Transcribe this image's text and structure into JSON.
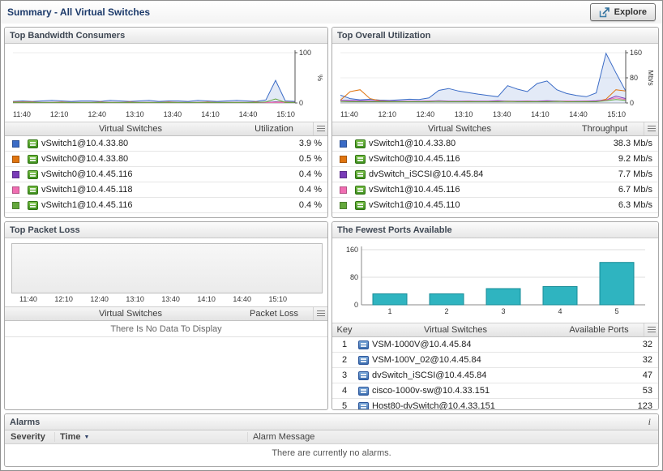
{
  "header": {
    "title": "Summary - All Virtual Switches",
    "explore": "Explore"
  },
  "icons": {
    "info": "i",
    "sort_desc": "▼"
  },
  "time_axis": [
    "11:40",
    "12:10",
    "12:40",
    "13:10",
    "13:40",
    "14:10",
    "14:40",
    "15:10"
  ],
  "panels": {
    "bandwidth": {
      "title": "Top Bandwidth Consumers",
      "columns": {
        "name": "Virtual Switches",
        "value": "Utilization"
      },
      "rows": [
        {
          "color": "#3a6bc6",
          "icon": "green",
          "name": "vSwitch1@10.4.33.80",
          "value": "3.9 %"
        },
        {
          "color": "#e07510",
          "icon": "green",
          "name": "vSwitch0@10.4.33.80",
          "value": "0.5 %"
        },
        {
          "color": "#7a3cb8",
          "icon": "green",
          "name": "vSwitch0@10.4.45.116",
          "value": "0.4 %"
        },
        {
          "color": "#f06eb2",
          "icon": "green",
          "name": "vSwitch1@10.4.45.118",
          "value": "0.4 %"
        },
        {
          "color": "#64a83c",
          "icon": "green",
          "name": "vSwitch1@10.4.45.116",
          "value": "0.4 %"
        }
      ]
    },
    "utilization": {
      "title": "Top Overall Utilization",
      "columns": {
        "name": "Virtual Switches",
        "value": "Throughput"
      },
      "rows": [
        {
          "color": "#3a6bc6",
          "icon": "green",
          "name": "vSwitch1@10.4.33.80",
          "value": "38.3 Mb/s"
        },
        {
          "color": "#e07510",
          "icon": "green",
          "name": "vSwitch0@10.4.45.116",
          "value": "9.2 Mb/s"
        },
        {
          "color": "#7a3cb8",
          "icon": "green",
          "name": "dvSwitch_iSCSI@10.4.45.84",
          "value": "7.7 Mb/s"
        },
        {
          "color": "#f06eb2",
          "icon": "green",
          "name": "vSwitch1@10.4.45.116",
          "value": "6.7 Mb/s"
        },
        {
          "color": "#64a83c",
          "icon": "green",
          "name": "vSwitch1@10.4.45.110",
          "value": "6.3 Mb/s"
        }
      ]
    },
    "packet_loss": {
      "title": "Top Packet Loss",
      "columns": {
        "name": "Virtual Switches",
        "value": "Packet Loss"
      },
      "no_data": "There Is No Data To Display"
    },
    "ports": {
      "title": "The Fewest Ports Available",
      "columns": {
        "key": "Key",
        "name": "Virtual Switches",
        "value": "Available Ports"
      },
      "rows": [
        {
          "key": "1",
          "icon": "blue",
          "name": "VSM-1000V@10.4.45.84",
          "value": "32"
        },
        {
          "key": "2",
          "icon": "blue",
          "name": "VSM-100V_02@10.4.45.84",
          "value": "32"
        },
        {
          "key": "3",
          "icon": "blue",
          "name": "dvSwitch_iSCSI@10.4.45.84",
          "value": "47"
        },
        {
          "key": "4",
          "icon": "blue",
          "name": "cisco-1000v-sw@10.4.33.151",
          "value": "53"
        },
        {
          "key": "5",
          "icon": "blue",
          "name": "Host80-dvSwitch@10.4.33.151",
          "value": "123"
        }
      ]
    },
    "alarms": {
      "title": "Alarms",
      "columns": {
        "severity": "Severity",
        "time": "Time",
        "message": "Alarm Message"
      },
      "no_data": "There are currently no alarms."
    }
  },
  "chart_data": [
    {
      "id": "bandwidth",
      "type": "line",
      "title": "Top Bandwidth Consumers",
      "x_labels": [
        "11:40",
        "12:10",
        "12:40",
        "13:10",
        "13:40",
        "14:10",
        "14:40",
        "15:10"
      ],
      "ylabel": "%",
      "ylim": [
        0,
        100
      ],
      "y_ticks": [
        0,
        100
      ],
      "axis_side": "right",
      "grid": false,
      "series": [
        {
          "name": "vSwitch1@10.4.33.80",
          "color": "#3a6bc6",
          "fill": true,
          "values": [
            3,
            4,
            3,
            4,
            5,
            4,
            3,
            4,
            4,
            3,
            5,
            4,
            3,
            4,
            5,
            3,
            4,
            4,
            3,
            5,
            4,
            3,
            4,
            5,
            4,
            3,
            6,
            45,
            4,
            3
          ]
        },
        {
          "name": "vSwitch0@10.4.33.80",
          "color": "#e07510",
          "values": [
            2,
            2,
            2,
            1,
            1,
            2,
            1,
            1,
            1,
            2,
            1,
            1,
            2,
            1,
            1,
            1,
            2,
            1,
            1,
            1,
            2,
            1,
            1,
            1,
            1,
            2,
            1,
            2,
            2,
            1
          ]
        },
        {
          "name": "vSwitch0@10.4.45.116",
          "color": "#7a3cb8",
          "values": [
            1,
            1,
            1,
            1,
            1,
            1,
            1,
            1,
            1,
            1,
            1,
            1,
            1,
            1,
            1,
            1,
            1,
            1,
            1,
            1,
            1,
            1,
            1,
            1,
            1,
            1,
            1,
            2,
            1,
            1
          ]
        },
        {
          "name": "vSwitch1@10.4.45.118",
          "color": "#f06eb2",
          "values": [
            1,
            1,
            1,
            1,
            1,
            1,
            1,
            1,
            1,
            1,
            1,
            1,
            1,
            1,
            1,
            1,
            1,
            1,
            1,
            1,
            1,
            1,
            1,
            1,
            1,
            1,
            1,
            1,
            1,
            1
          ]
        },
        {
          "name": "vSwitch1@10.4.45.116",
          "color": "#64a83c",
          "values": [
            1,
            1,
            1,
            1,
            1,
            1,
            1,
            1,
            1,
            1,
            1,
            1,
            1,
            1,
            1,
            1,
            1,
            1,
            1,
            1,
            1,
            1,
            1,
            1,
            1,
            1,
            2,
            8,
            1,
            1
          ]
        }
      ]
    },
    {
      "id": "utilization",
      "type": "line",
      "title": "Top Overall Utilization",
      "x_labels": [
        "11:40",
        "12:10",
        "12:40",
        "13:10",
        "13:40",
        "14:10",
        "14:40",
        "15:10"
      ],
      "ylabel": "Mb/s",
      "ylim": [
        0,
        160
      ],
      "y_ticks": [
        0,
        80,
        160
      ],
      "axis_side": "right",
      "grid": false,
      "series": [
        {
          "name": "vSwitch1@10.4.33.80",
          "color": "#3a6bc6",
          "fill": true,
          "values": [
            25,
            14,
            10,
            12,
            9,
            8,
            10,
            12,
            11,
            16,
            40,
            46,
            38,
            33,
            28,
            24,
            20,
            55,
            44,
            36,
            62,
            70,
            42,
            30,
            24,
            20,
            32,
            158,
            96,
            38
          ]
        },
        {
          "name": "vSwitch0@10.4.45.116",
          "color": "#e07510",
          "values": [
            9,
            36,
            42,
            14,
            7,
            6,
            5,
            5,
            5,
            6,
            6,
            5,
            5,
            6,
            5,
            5,
            6,
            5,
            5,
            6,
            5,
            5,
            6,
            5,
            5,
            6,
            5,
            12,
            42,
            38
          ]
        },
        {
          "name": "dvSwitch_iSCSI@10.4.45.84",
          "color": "#7a3cb8",
          "values": [
            8,
            8,
            7,
            7,
            6,
            6,
            6,
            6,
            6,
            6,
            7,
            6,
            6,
            6,
            6,
            6,
            7,
            6,
            6,
            6,
            6,
            7,
            6,
            6,
            6,
            6,
            7,
            9,
            22,
            14
          ]
        },
        {
          "name": "vSwitch1@10.4.45.116",
          "color": "#f06eb2",
          "values": [
            6,
            5,
            5,
            5,
            5,
            5,
            5,
            5,
            5,
            5,
            6,
            5,
            5,
            5,
            5,
            5,
            5,
            6,
            5,
            5,
            5,
            5,
            5,
            6,
            5,
            5,
            5,
            9,
            16,
            11
          ]
        },
        {
          "name": "vSwitch1@10.4.45.110",
          "color": "#64a83c",
          "values": [
            5,
            4,
            4,
            4,
            4,
            4,
            4,
            4,
            4,
            4,
            5,
            4,
            4,
            4,
            4,
            4,
            4,
            5,
            4,
            4,
            4,
            4,
            5,
            4,
            4,
            4,
            4,
            7,
            11,
            8
          ]
        }
      ]
    },
    {
      "id": "packet_loss",
      "type": "line",
      "title": "Top Packet Loss",
      "x_labels": [
        "11:40",
        "12:10",
        "12:40",
        "13:10",
        "13:40",
        "14:10",
        "14:40",
        "15:10"
      ],
      "ylabel": "",
      "ylim": [
        0,
        1
      ],
      "series": [],
      "empty": true,
      "note": "There Is No Data To Display"
    },
    {
      "id": "ports",
      "type": "bar",
      "title": "The Fewest Ports Available",
      "categories": [
        "1",
        "2",
        "3",
        "4",
        "5"
      ],
      "values": [
        32,
        32,
        47,
        53,
        123
      ],
      "xlabel": "Key",
      "ylabel": "",
      "ylim": [
        0,
        160
      ],
      "y_ticks": [
        0,
        80,
        160
      ],
      "bar_color": "#2fb4c0",
      "bar_stroke": "#1a8d98",
      "grid": true,
      "legend": "none"
    }
  ]
}
